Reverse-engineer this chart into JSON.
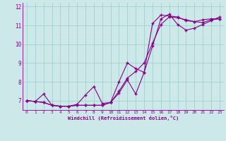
{
  "bg_color": "#cce8e8",
  "line_color": "#880088",
  "grid_color": "#99cccc",
  "xlabel": "Windchill (Refroidissement éolien,°C)",
  "xlim": [
    -0.5,
    23.5
  ],
  "ylim": [
    6.5,
    12.2
  ],
  "xticks": [
    0,
    1,
    2,
    3,
    4,
    5,
    6,
    7,
    8,
    9,
    10,
    11,
    12,
    13,
    14,
    15,
    16,
    17,
    18,
    19,
    20,
    21,
    22,
    23
  ],
  "yticks": [
    7,
    8,
    9,
    10,
    11,
    12
  ],
  "series1_x": [
    0,
    1,
    2,
    3,
    4,
    5,
    6,
    7,
    8,
    9,
    10,
    11,
    12,
    13,
    14,
    15,
    16,
    17,
    18,
    19,
    20,
    21,
    22,
    23
  ],
  "series1_y": [
    7.0,
    6.95,
    6.9,
    6.75,
    6.7,
    6.7,
    6.75,
    6.75,
    6.75,
    6.75,
    6.9,
    7.5,
    8.2,
    8.55,
    9.0,
    10.05,
    11.05,
    11.45,
    11.4,
    11.3,
    11.2,
    11.15,
    11.3,
    11.35
  ],
  "series2_x": [
    0,
    1,
    2,
    3,
    4,
    5,
    6,
    7,
    8,
    9,
    10,
    11,
    12,
    13,
    14,
    15,
    16,
    17,
    18,
    19,
    20,
    21,
    22,
    23
  ],
  "series2_y": [
    7.0,
    6.95,
    7.35,
    6.75,
    6.7,
    6.7,
    6.8,
    7.3,
    7.75,
    6.85,
    6.9,
    8.0,
    9.0,
    8.7,
    8.5,
    9.9,
    11.35,
    11.6,
    11.05,
    10.75,
    10.85,
    11.05,
    11.25,
    11.45
  ],
  "series3_x": [
    0,
    1,
    2,
    3,
    4,
    5,
    6,
    7,
    8,
    9,
    10,
    11,
    12,
    13,
    14,
    15,
    16,
    17,
    18,
    19,
    20,
    21,
    22,
    23
  ],
  "series3_y": [
    7.0,
    6.95,
    6.9,
    6.75,
    6.7,
    6.7,
    6.75,
    6.75,
    6.75,
    6.75,
    6.9,
    7.4,
    8.1,
    7.35,
    8.5,
    11.1,
    11.55,
    11.5,
    11.45,
    11.25,
    11.2,
    11.3,
    11.35,
    11.35
  ]
}
